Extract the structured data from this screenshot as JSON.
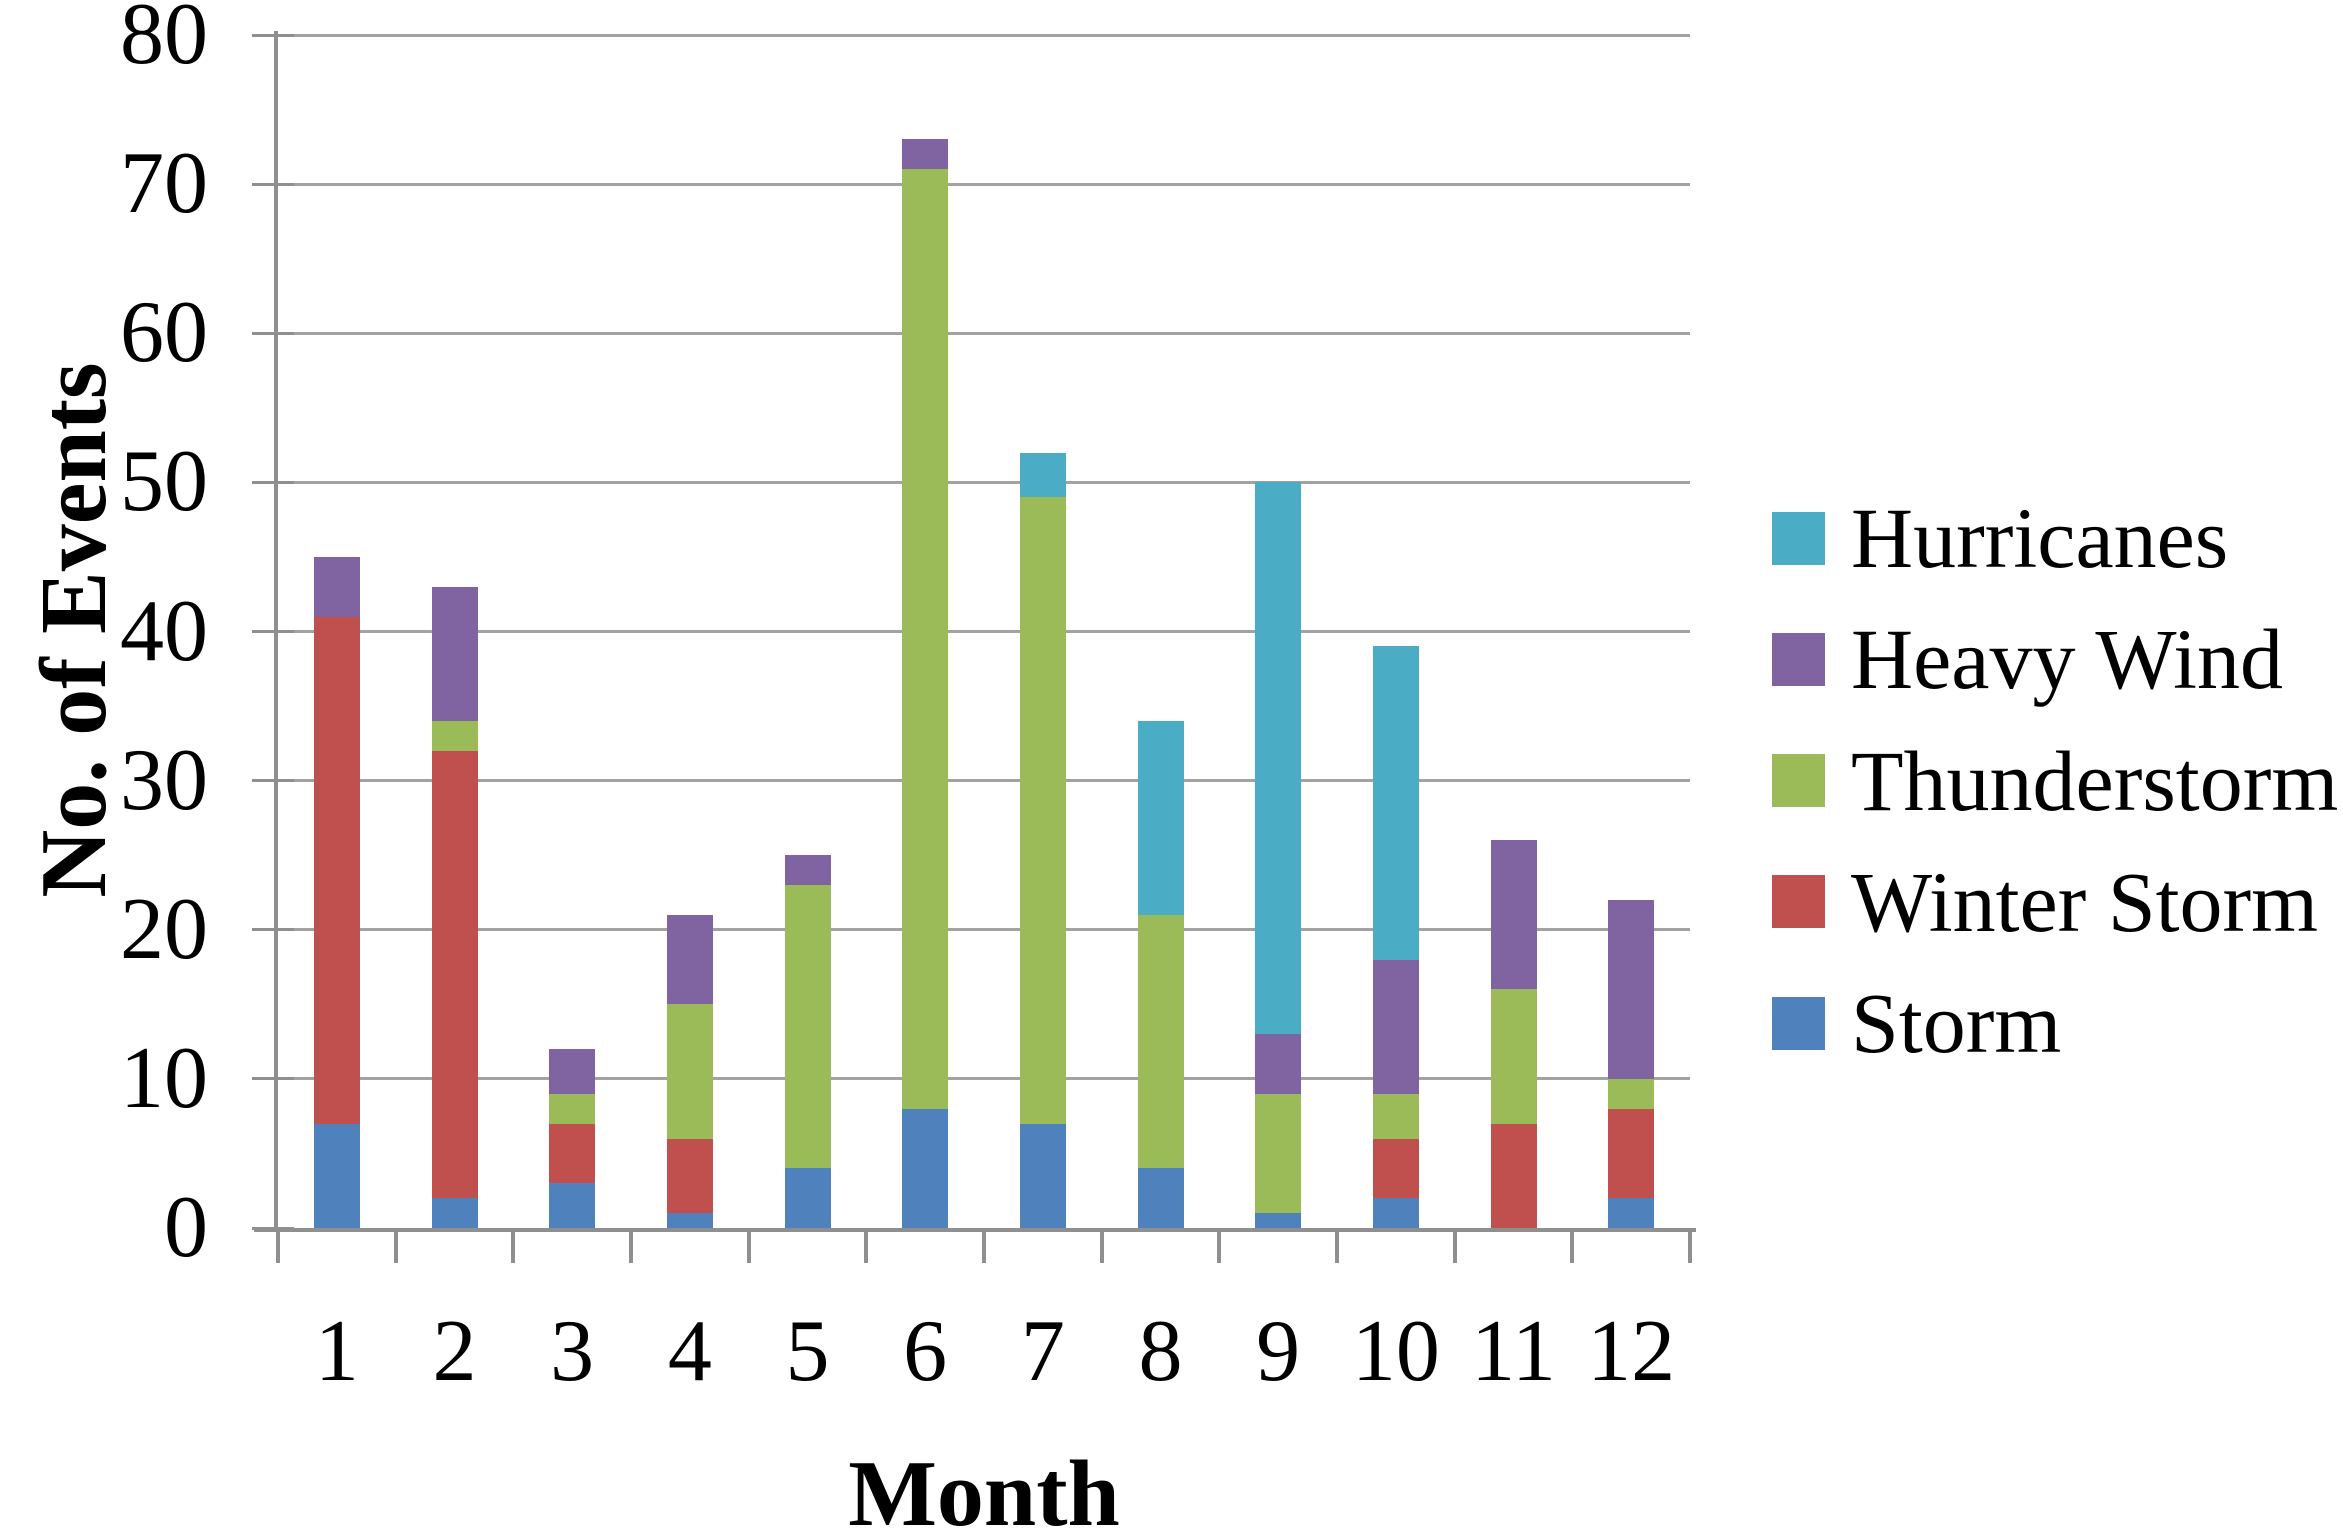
{
  "chart_data": {
    "type": "bar",
    "stacked": true,
    "xlabel": "Month",
    "ylabel": "No. of Events",
    "categories": [
      "1",
      "2",
      "3",
      "4",
      "5",
      "6",
      "7",
      "8",
      "9",
      "10",
      "11",
      "12"
    ],
    "series": [
      {
        "name": "Storm",
        "color": "#4F81BD",
        "values": [
          7,
          2,
          3,
          1,
          4,
          8,
          7,
          4,
          1,
          2,
          0,
          2
        ]
      },
      {
        "name": "Winter Storm",
        "color": "#C0504D",
        "values": [
          34,
          30,
          4,
          5,
          0,
          0,
          0,
          0,
          0,
          4,
          7,
          6
        ]
      },
      {
        "name": "Thunderstorm",
        "color": "#9BBB59",
        "values": [
          0,
          2,
          2,
          9,
          19,
          63,
          42,
          17,
          8,
          3,
          9,
          2
        ]
      },
      {
        "name": "Heavy Wind",
        "color": "#8064A2",
        "values": [
          4,
          9,
          3,
          6,
          2,
          2,
          0,
          0,
          4,
          9,
          10,
          12
        ]
      },
      {
        "name": "Hurricanes",
        "color": "#4BACC6",
        "values": [
          0,
          0,
          0,
          0,
          0,
          0,
          3,
          13,
          37,
          21,
          0,
          0
        ]
      }
    ],
    "stack_order": "bottom-to-top",
    "ylim": [
      0,
      80
    ],
    "ytick_step": 10,
    "yticks": [
      "0",
      "10",
      "20",
      "30",
      "40",
      "50",
      "60",
      "70",
      "80"
    ],
    "grid": true,
    "legend": {
      "position": "right",
      "entries_top_to_bottom": [
        "Hurricanes",
        "Heavy Wind",
        "Thunderstorm",
        "Winter Storm",
        "Storm"
      ]
    }
  }
}
